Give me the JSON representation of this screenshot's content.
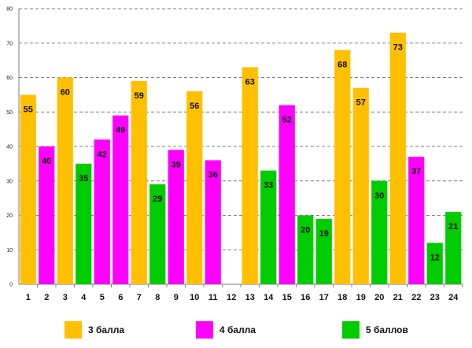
{
  "chart_data": {
    "type": "bar",
    "title": "",
    "xlabel": "",
    "ylabel": "",
    "ylim": [
      0,
      80
    ],
    "yticks": [
      0,
      10,
      20,
      30,
      40,
      50,
      60,
      70,
      80
    ],
    "grid": "dashed-horizontal",
    "categories": [
      "1",
      "2",
      "3",
      "4",
      "5",
      "6",
      "7",
      "8",
      "9",
      "10",
      "11",
      "12",
      "13",
      "14",
      "15",
      "16",
      "17",
      "18",
      "19",
      "20",
      "21",
      "22",
      "23",
      "24"
    ],
    "values": [
      55,
      40,
      60,
      35,
      42,
      49,
      59,
      29,
      39,
      56,
      36,
      null,
      63,
      33,
      52,
      20,
      19,
      68,
      57,
      30,
      73,
      37,
      12,
      21
    ],
    "groups": [
      "3",
      "4",
      "3",
      "5",
      "4",
      "4",
      "3",
      "5",
      "4",
      "3",
      "4",
      "none",
      "3",
      "5",
      "4",
      "5",
      "5",
      "3",
      "3",
      "5",
      "3",
      "4",
      "5",
      "5"
    ],
    "series": [
      {
        "key": "3",
        "name": "3 балла",
        "color": "#FFC000"
      },
      {
        "key": "4",
        "name": "4 балла",
        "color": "#FF00FF"
      },
      {
        "key": "5",
        "name": "5 баллов",
        "color": "#00CC00"
      }
    ],
    "legend_position": "bottom"
  }
}
